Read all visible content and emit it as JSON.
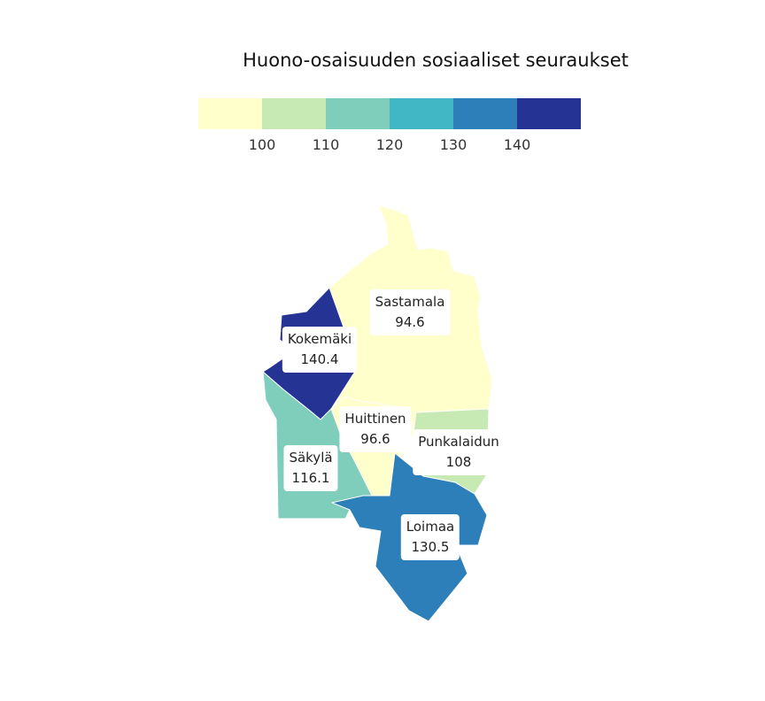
{
  "title": "Huono-osaisuuden sosiaaliset seuraukset",
  "legend": {
    "colors": [
      "#ffffcc",
      "#c7e9b4",
      "#7fcdbb",
      "#41b6c4",
      "#2c7fb8",
      "#253494"
    ],
    "ticks": [
      "100",
      "110",
      "120",
      "130",
      "140"
    ]
  },
  "regions": [
    {
      "name": "Sastamala",
      "value": "94.6",
      "color": "#ffffcc"
    },
    {
      "name": "Kokemäki",
      "value": "140.4",
      "color": "#253494"
    },
    {
      "name": "Huittinen",
      "value": "96.6",
      "color": "#ffffcc"
    },
    {
      "name": "Punkalaidun",
      "value": "108",
      "color": "#c7e9b4"
    },
    {
      "name": "Säkylä",
      "value": "116.1",
      "color": "#7fcdbb"
    },
    {
      "name": "Loimaa",
      "value": "130.5",
      "color": "#2c7fb8"
    }
  ]
}
